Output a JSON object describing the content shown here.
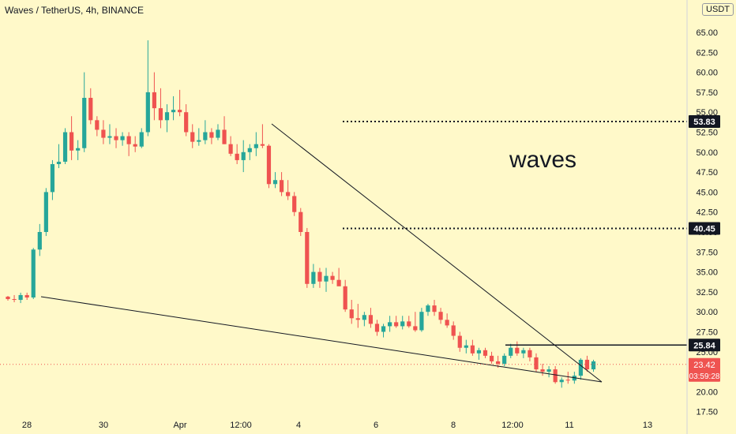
{
  "header": {
    "title": "Waves / TetherUS, 4h, BINANCE",
    "currency": "USDT"
  },
  "chart_data": {
    "type": "candlestick",
    "yticks": [
      "65.00",
      "62.50",
      "60.00",
      "57.50",
      "55.00",
      "52.50",
      "50.00",
      "47.50",
      "45.00",
      "42.50",
      "40.00",
      "37.50",
      "35.00",
      "32.50",
      "30.00",
      "27.50",
      "25.00",
      "22.50",
      "20.00",
      "17.50"
    ],
    "xticks": [
      "28",
      "30",
      "Apr",
      "12:00",
      "4",
      "6",
      "8",
      "12:00",
      "11",
      "13"
    ],
    "annotation": "waves",
    "levels": [
      {
        "label": "53.83",
        "value": 53.83,
        "style": "dotted"
      },
      {
        "label": "40.45",
        "value": 40.45,
        "style": "dotted"
      },
      {
        "label": "25.84",
        "value": 25.84,
        "style": "solid"
      }
    ],
    "current_price": {
      "label": "23.42",
      "countdown": "03:59:28",
      "value": 23.42
    },
    "colors": {
      "up": "#26a69a",
      "down": "#ef5350",
      "line": "#131722",
      "background": "#fff9c9"
    },
    "candles": [
      [
        31.9,
        32.0,
        31.4,
        31.6
      ],
      [
        31.6,
        32.1,
        31.2,
        31.5
      ],
      [
        31.5,
        32.4,
        31.1,
        32.1
      ],
      [
        32.1,
        32.4,
        31.5,
        31.8
      ],
      [
        31.8,
        38.0,
        31.6,
        37.8
      ],
      [
        37.8,
        41.0,
        37.0,
        40.0
      ],
      [
        40.0,
        45.5,
        39.5,
        45.0
      ],
      [
        45.0,
        49.0,
        44.0,
        48.5
      ],
      [
        48.5,
        51.0,
        48.0,
        48.8
      ],
      [
        48.8,
        53.0,
        48.5,
        52.5
      ],
      [
        52.5,
        54.5,
        49.0,
        50.2
      ],
      [
        50.2,
        51.5,
        49.0,
        50.5
      ],
      [
        50.5,
        60.0,
        50.0,
        56.8
      ],
      [
        56.8,
        58.0,
        53.5,
        54.0
      ],
      [
        54.0,
        54.5,
        52.0,
        52.8
      ],
      [
        52.8,
        54.0,
        51.0,
        51.8
      ],
      [
        51.8,
        53.5,
        51.0,
        52.0
      ],
      [
        52.0,
        53.0,
        50.5,
        51.5
      ],
      [
        51.5,
        52.5,
        50.8,
        52.0
      ],
      [
        52.0,
        52.5,
        49.5,
        51.0
      ],
      [
        51.0,
        52.0,
        50.0,
        50.7
      ],
      [
        50.7,
        53.0,
        50.5,
        52.5
      ],
      [
        52.5,
        64.0,
        52.0,
        57.5
      ],
      [
        57.5,
        60.0,
        54.0,
        55.5
      ],
      [
        55.5,
        58.0,
        53.0,
        54.0
      ],
      [
        54.0,
        56.0,
        52.5,
        55.0
      ],
      [
        55.0,
        57.0,
        54.0,
        55.3
      ],
      [
        55.3,
        57.8,
        54.5,
        55.0
      ],
      [
        55.0,
        56.0,
        52.0,
        52.5
      ],
      [
        52.5,
        53.5,
        50.5,
        51.3
      ],
      [
        51.3,
        53.0,
        50.8,
        51.5
      ],
      [
        51.5,
        54.0,
        51.0,
        52.5
      ],
      [
        52.5,
        53.0,
        51.0,
        51.8
      ],
      [
        51.8,
        53.5,
        51.5,
        52.8
      ],
      [
        52.8,
        54.5,
        51.0,
        51.0
      ],
      [
        51.0,
        52.0,
        49.5,
        49.8
      ],
      [
        49.8,
        51.0,
        48.5,
        49.0
      ],
      [
        49.0,
        51.5,
        47.5,
        50.0
      ],
      [
        50.0,
        51.0,
        49.0,
        50.5
      ],
      [
        50.5,
        52.5,
        49.5,
        51.0
      ],
      [
        51.0,
        53.5,
        50.5,
        50.8
      ],
      [
        50.8,
        51.0,
        45.5,
        46.0
      ],
      [
        46.0,
        47.5,
        45.5,
        46.5
      ],
      [
        46.5,
        47.5,
        44.5,
        45.0
      ],
      [
        45.0,
        46.5,
        44.0,
        44.5
      ],
      [
        44.5,
        45.0,
        42.0,
        42.5
      ],
      [
        42.5,
        43.0,
        39.5,
        40.0
      ],
      [
        40.0,
        40.5,
        33.0,
        33.5
      ],
      [
        33.5,
        36.0,
        33.0,
        35.0
      ],
      [
        35.0,
        35.5,
        33.0,
        33.8
      ],
      [
        33.8,
        35.5,
        32.5,
        34.5
      ],
      [
        34.5,
        35.0,
        33.5,
        34.0
      ],
      [
        34.0,
        35.5,
        33.5,
        33.2
      ],
      [
        33.2,
        34.0,
        30.0,
        30.3
      ],
      [
        30.3,
        31.5,
        28.5,
        29.2
      ],
      [
        29.2,
        31.0,
        28.0,
        29.0
      ],
      [
        29.0,
        30.0,
        28.2,
        29.6
      ],
      [
        29.6,
        30.5,
        28.0,
        28.5
      ],
      [
        28.5,
        29.0,
        27.0,
        27.5
      ],
      [
        27.5,
        28.5,
        26.8,
        28.2
      ],
      [
        28.2,
        29.5,
        27.5,
        28.7
      ],
      [
        28.7,
        29.5,
        28.0,
        28.2
      ],
      [
        28.2,
        29.5,
        27.8,
        28.8
      ],
      [
        28.8,
        29.5,
        28.0,
        28.2
      ],
      [
        28.2,
        30.0,
        27.5,
        27.7
      ],
      [
        27.7,
        30.5,
        27.5,
        30.0
      ],
      [
        30.0,
        31.0,
        29.5,
        30.8
      ],
      [
        30.8,
        31.5,
        29.5,
        30.0
      ],
      [
        30.0,
        30.5,
        28.5,
        29.0
      ],
      [
        29.0,
        29.8,
        28.0,
        28.3
      ],
      [
        28.3,
        28.8,
        26.5,
        27.0
      ],
      [
        27.0,
        27.5,
        25.0,
        25.5
      ],
      [
        25.5,
        26.5,
        24.8,
        25.8
      ],
      [
        25.8,
        26.5,
        24.5,
        24.8
      ],
      [
        24.8,
        25.5,
        24.0,
        25.2
      ],
      [
        25.2,
        25.5,
        24.2,
        24.5
      ],
      [
        24.5,
        25.0,
        23.5,
        23.8
      ],
      [
        23.8,
        24.5,
        23.0,
        23.5
      ],
      [
        23.5,
        24.8,
        23.2,
        24.5
      ],
      [
        24.5,
        26.0,
        24.2,
        25.5
      ],
      [
        25.5,
        26.3,
        24.5,
        24.8
      ],
      [
        24.8,
        25.5,
        24.2,
        25.2
      ],
      [
        25.2,
        25.5,
        23.8,
        24.3
      ],
      [
        24.3,
        24.8,
        22.5,
        22.8
      ],
      [
        22.8,
        23.5,
        22.0,
        22.5
      ],
      [
        22.5,
        23.2,
        21.8,
        22.8
      ],
      [
        22.8,
        23.2,
        21.0,
        21.2
      ],
      [
        21.2,
        21.8,
        20.5,
        21.5
      ],
      [
        21.5,
        22.5,
        21.0,
        21.4
      ],
      [
        21.4,
        22.5,
        21.0,
        22.0
      ],
      [
        22.0,
        24.2,
        21.5,
        24.0
      ],
      [
        24.0,
        24.5,
        22.5,
        22.8
      ],
      [
        22.8,
        24.0,
        22.5,
        23.8
      ]
    ]
  }
}
